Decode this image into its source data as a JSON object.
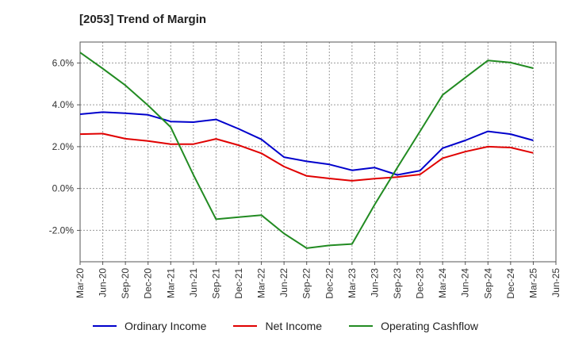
{
  "chart_data": {
    "type": "line",
    "title": "[2053]  Trend of Margin",
    "xlabel": "",
    "ylabel": "",
    "categories": [
      "Mar-20",
      "Jun-20",
      "Sep-20",
      "Dec-20",
      "Mar-21",
      "Jun-21",
      "Sep-21",
      "Dec-21",
      "Mar-22",
      "Jun-22",
      "Sep-22",
      "Dec-22",
      "Mar-23",
      "Jun-23",
      "Sep-23",
      "Dec-23",
      "Mar-24",
      "Jun-24",
      "Sep-24",
      "Dec-24",
      "Mar-25",
      "Jun-25"
    ],
    "ylim": [
      -3.5,
      7.0
    ],
    "yticks": [
      -2.0,
      0.0,
      2.0,
      4.0,
      6.0
    ],
    "ytick_labels": [
      "-2.0%",
      "0.0%",
      "2.0%",
      "4.0%",
      "6.0%"
    ],
    "grid": true,
    "legend_position": "bottom",
    "series": [
      {
        "name": "Ordinary Income",
        "color": "#0000cc",
        "values": [
          3.55,
          3.65,
          3.6,
          3.52,
          3.2,
          3.17,
          3.3,
          2.85,
          2.35,
          1.5,
          1.3,
          1.15,
          0.87,
          1.0,
          0.65,
          0.85,
          1.93,
          2.3,
          2.73,
          2.6,
          2.3,
          null
        ]
      },
      {
        "name": "Net Income",
        "color": "#e00000",
        "values": [
          2.6,
          2.62,
          2.38,
          2.27,
          2.12,
          2.12,
          2.37,
          2.07,
          1.68,
          1.05,
          0.6,
          0.48,
          0.37,
          0.47,
          0.55,
          0.67,
          1.45,
          1.76,
          2.0,
          1.96,
          1.7,
          null
        ]
      },
      {
        "name": "Operating Cashflow",
        "color": "#228b22",
        "values": [
          6.5,
          5.73,
          4.93,
          3.97,
          2.93,
          0.65,
          -1.47,
          -1.37,
          -1.27,
          -2.15,
          -2.85,
          -2.72,
          -2.65,
          -0.77,
          1.0,
          2.73,
          4.47,
          5.3,
          6.12,
          6.02,
          5.75,
          null
        ]
      }
    ]
  }
}
